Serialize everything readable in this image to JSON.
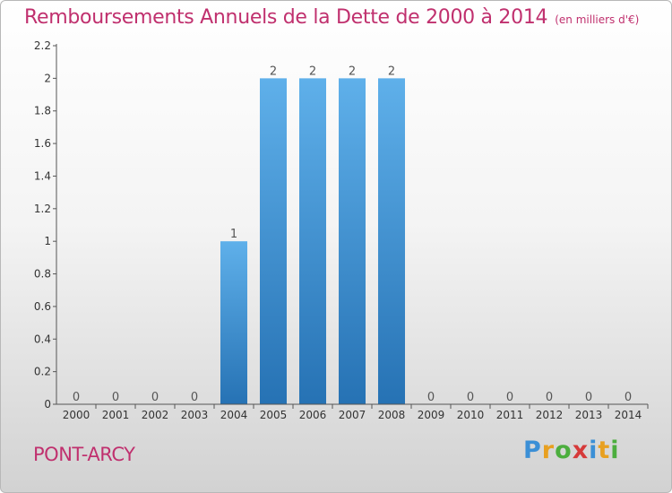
{
  "header": {
    "title": "Remboursements Annuels de la Dette de 2000 à 2014",
    "unit": "(en milliers d'€)"
  },
  "footer": {
    "commune": "PONT-ARCY"
  },
  "logo": {
    "letters": [
      "P",
      "r",
      "o",
      "x",
      "i",
      "t",
      "i"
    ],
    "colors": [
      "#3b8fd6",
      "#e8a020",
      "#4cae3e",
      "#d63a3a",
      "#3b8fd6",
      "#e8a020",
      "#4cae3e"
    ]
  },
  "colors": {
    "title": "#c0306e",
    "bar_top": "#5fb0ea",
    "bar_bottom": "#2672b4"
  },
  "chart_data": {
    "type": "bar",
    "title": "Remboursements Annuels de la Dette de 2000 à 2014",
    "xlabel": "",
    "ylabel": "",
    "categories": [
      "2000",
      "2001",
      "2002",
      "2003",
      "2004",
      "2005",
      "2006",
      "2007",
      "2008",
      "2009",
      "2010",
      "2011",
      "2012",
      "2013",
      "2014"
    ],
    "values": [
      0,
      0,
      0,
      0,
      1,
      2,
      2,
      2,
      2,
      0,
      0,
      0,
      0,
      0,
      0
    ],
    "data_labels": [
      "0",
      "0",
      "0",
      "0",
      "1",
      "2",
      "2",
      "2",
      "2",
      "0",
      "0",
      "0",
      "0",
      "0",
      "0"
    ],
    "ylim": [
      0,
      2.2
    ],
    "yticks": [
      0,
      0.2,
      0.4,
      0.6,
      0.8,
      1,
      1.2,
      1.4,
      1.6,
      1.8,
      2,
      2.2
    ],
    "ytick_labels": [
      "0",
      "0.2",
      "0.4",
      "0.6",
      "0.8",
      "1",
      "1.2",
      "1.4",
      "1.6",
      "1.8",
      "2",
      "2.2"
    ],
    "grid": false,
    "legend": "none"
  }
}
